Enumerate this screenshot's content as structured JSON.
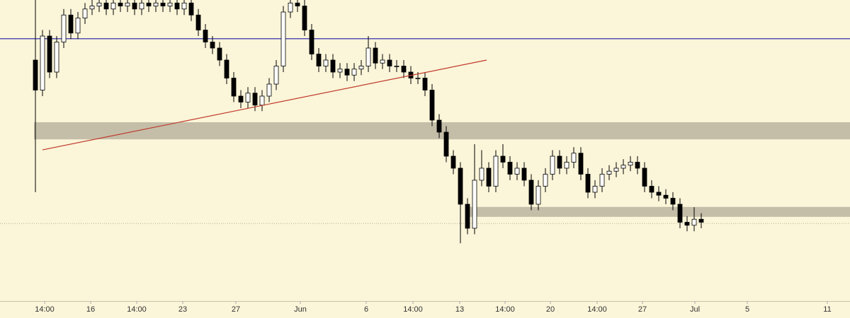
{
  "chart_data": {
    "type": "candlestick",
    "xlim": [
      0,
      120
    ],
    "ylim": [
      0,
      100
    ],
    "xticks": [
      {
        "value": 6.3,
        "label": "14:00"
      },
      {
        "value": 12.8,
        "label": "16"
      },
      {
        "value": 19.3,
        "label": "14:00"
      },
      {
        "value": 25.8,
        "label": "23"
      },
      {
        "value": 33.3,
        "label": "27"
      },
      {
        "value": 42.4,
        "label": "Jun"
      },
      {
        "value": 51.7,
        "label": "6"
      },
      {
        "value": 58.3,
        "label": "14:00"
      },
      {
        "value": 64.9,
        "label": "13"
      },
      {
        "value": 71.3,
        "label": "14:00"
      },
      {
        "value": 77.7,
        "label": "20"
      },
      {
        "value": 84.3,
        "label": "14:00"
      },
      {
        "value": 90.7,
        "label": "27"
      },
      {
        "value": 98.1,
        "label": "Jul"
      },
      {
        "value": 105.5,
        "label": "5"
      },
      {
        "value": 116.8,
        "label": "11"
      }
    ],
    "x": [
      5,
      6,
      7,
      8,
      9,
      10,
      11,
      12,
      13,
      14,
      15,
      16,
      17,
      18,
      19,
      20,
      21,
      22,
      23,
      24,
      25,
      26,
      27,
      28,
      29,
      30,
      31,
      32,
      33,
      34,
      35,
      36,
      37,
      38,
      39,
      40,
      41,
      42,
      43,
      44,
      45,
      46,
      47,
      48,
      49,
      50,
      51,
      52,
      53,
      54,
      55,
      56,
      57,
      58,
      59,
      60,
      61,
      62,
      63,
      64,
      65,
      66,
      67,
      68,
      69,
      70,
      71,
      72,
      73,
      74,
      75,
      76,
      77,
      78,
      79,
      80,
      81,
      82,
      83,
      84,
      85,
      86,
      87,
      88,
      89,
      90,
      91,
      92,
      93,
      94,
      95,
      96,
      97,
      98,
      99
    ],
    "open": [
      80,
      70,
      88,
      76,
      86,
      95,
      89,
      94,
      97,
      98,
      99,
      97,
      99,
      98,
      99,
      97,
      99,
      98,
      99,
      98,
      99,
      97,
      99,
      95,
      90,
      86,
      84,
      80,
      74,
      68,
      66,
      69,
      65,
      68,
      72,
      78,
      96,
      99,
      98,
      90,
      82,
      78,
      80,
      76,
      77,
      75,
      77,
      78,
      84,
      79,
      80,
      78,
      78,
      76,
      74,
      74,
      70,
      60,
      56,
      48,
      44,
      32,
      24,
      40,
      44,
      38,
      48,
      46,
      42,
      44,
      40,
      32,
      38,
      42,
      48,
      44,
      46,
      49,
      42,
      36,
      38,
      42,
      43,
      44,
      45,
      46,
      44,
      38,
      36,
      35,
      34,
      32,
      26,
      25,
      27
    ],
    "high": [
      100,
      90,
      90,
      88,
      97,
      97,
      96,
      99,
      100,
      101,
      101,
      101,
      101,
      101,
      101,
      101,
      101,
      101,
      101,
      101,
      101,
      101,
      101,
      97,
      92,
      88,
      86,
      82,
      76,
      70,
      71,
      71,
      70,
      74,
      80,
      98,
      101,
      101,
      100,
      92,
      84,
      82,
      82,
      79,
      79,
      79,
      80,
      88,
      86,
      82,
      82,
      80,
      80,
      78,
      76,
      76,
      72,
      62,
      58,
      50,
      46,
      34,
      52,
      50,
      46,
      50,
      52,
      48,
      46,
      46,
      42,
      40,
      44,
      50,
      50,
      48,
      51,
      51,
      44,
      40,
      44,
      45,
      46,
      47,
      48,
      48,
      46,
      40,
      38,
      37,
      36,
      34,
      28,
      31,
      29
    ],
    "low": [
      36,
      68,
      74,
      74,
      84,
      87,
      87,
      92,
      95,
      96,
      95,
      95,
      96,
      96,
      95,
      95,
      96,
      96,
      96,
      96,
      95,
      95,
      93,
      88,
      84,
      82,
      78,
      72,
      66,
      64,
      64,
      63,
      63,
      66,
      70,
      76,
      94,
      96,
      88,
      80,
      76,
      76,
      74,
      74,
      73,
      73,
      75,
      76,
      77,
      77,
      76,
      76,
      74,
      72,
      72,
      68,
      58,
      54,
      46,
      42,
      19,
      22,
      22,
      38,
      36,
      36,
      44,
      40,
      40,
      38,
      30,
      30,
      36,
      40,
      42,
      42,
      44,
      40,
      34,
      34,
      36,
      40,
      41,
      42,
      43,
      42,
      36,
      34,
      33,
      32,
      30,
      24,
      23,
      23,
      24
    ],
    "close": [
      70,
      88,
      76,
      86,
      95,
      89,
      94,
      97,
      98,
      99,
      97,
      99,
      98,
      99,
      97,
      99,
      98,
      99,
      98,
      99,
      97,
      99,
      95,
      90,
      86,
      84,
      80,
      74,
      68,
      66,
      69,
      65,
      68,
      72,
      78,
      96,
      99,
      98,
      90,
      82,
      78,
      80,
      76,
      77,
      75,
      77,
      78,
      84,
      79,
      80,
      78,
      78,
      76,
      74,
      74,
      70,
      60,
      56,
      48,
      44,
      32,
      24,
      40,
      44,
      38,
      48,
      46,
      42,
      44,
      40,
      32,
      38,
      42,
      48,
      44,
      46,
      49,
      42,
      36,
      38,
      42,
      43,
      44,
      45,
      46,
      44,
      38,
      36,
      35,
      34,
      32,
      26,
      25,
      27,
      26
    ],
    "up_color": "#ffffff",
    "down_color": "#000000",
    "zones": [
      {
        "x": [
          4.8,
          120
        ],
        "y": [
          53.6,
          59.3
        ],
        "color": "#c4bea9"
      },
      {
        "x": [
          66,
          120
        ],
        "y": [
          27.8,
          31.1
        ],
        "color": "#c4bea9"
      }
    ],
    "hline": {
      "value": 87.1,
      "color": "#1c1ca8"
    },
    "trendline": {
      "x": [
        6,
        68.7
      ],
      "y": [
        50.1,
        80
      ],
      "color": "#c0392b"
    },
    "dotted_line": {
      "value": 25.6,
      "color": "#b8b090"
    }
  }
}
